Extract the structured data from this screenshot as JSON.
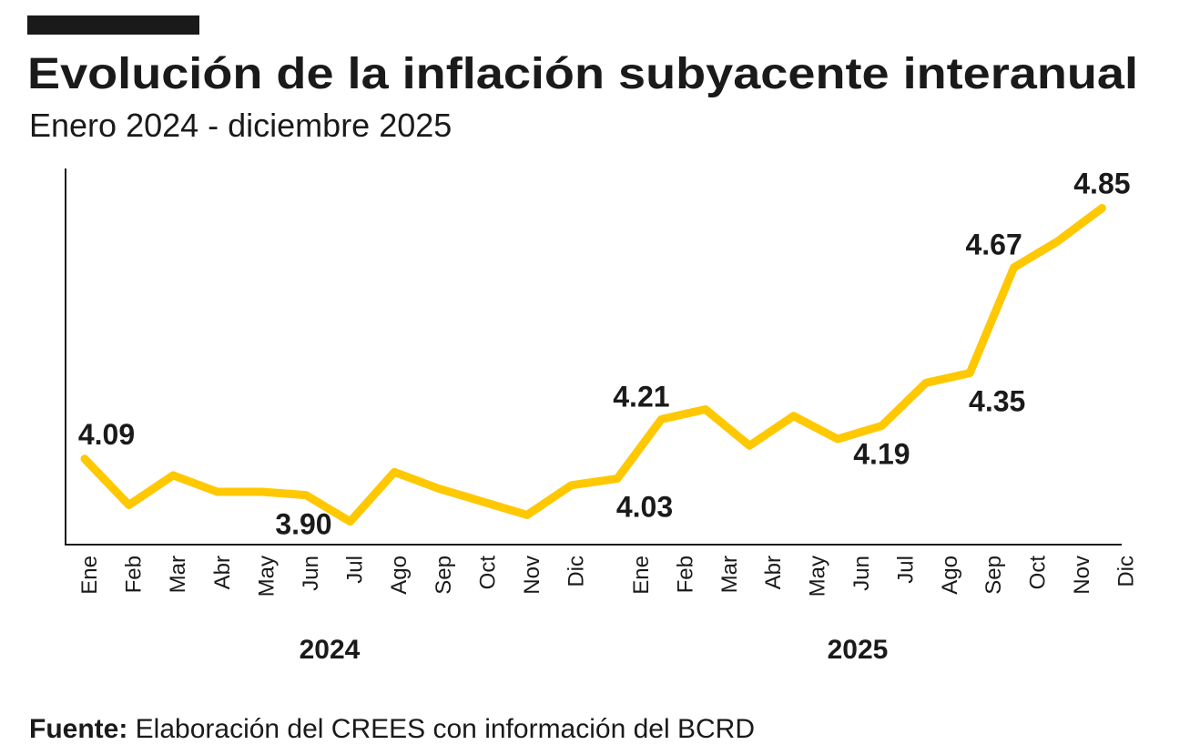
{
  "chart_data": {
    "type": "line",
    "title": "Evolución de la inflación subyacente interanual",
    "subtitle": "Enero 2024 - diciembre 2025",
    "xlabel": "",
    "ylabel": "",
    "groups": [
      {
        "year": "2024",
        "months": [
          "Ene",
          "Feb",
          "Mar",
          "Abr",
          "May",
          "Jun",
          "Jul",
          "Ago",
          "Sep",
          "Oct",
          "Nov",
          "Dic"
        ]
      },
      {
        "year": "2025",
        "months": [
          "Ene",
          "Feb",
          "Mar",
          "Abr",
          "May",
          "Jun",
          "Jul",
          "Ago",
          "Sep",
          "Oct",
          "Nov",
          "Dic"
        ]
      }
    ],
    "series": [
      {
        "values": [
          4.09,
          3.95,
          4.04,
          3.99,
          3.99,
          3.98,
          3.9,
          4.05,
          4.0,
          3.96,
          3.92,
          4.01,
          4.03,
          4.21,
          4.24,
          4.13,
          4.22,
          4.15,
          4.19,
          4.32,
          4.35,
          4.67,
          4.75,
          4.85
        ],
        "color": "#FFC800"
      }
    ],
    "data_labels": [
      {
        "index": 0,
        "text": "4.09",
        "pos": "above"
      },
      {
        "index": 6,
        "text": "3.90",
        "pos": "left"
      },
      {
        "index": 12,
        "text": "4.03",
        "pos": "below"
      },
      {
        "index": 13,
        "text": "4.21",
        "pos": "above-left"
      },
      {
        "index": 18,
        "text": "4.19",
        "pos": "below"
      },
      {
        "index": 20,
        "text": "4.35",
        "pos": "below"
      },
      {
        "index": 21,
        "text": "4.67",
        "pos": "above-left"
      },
      {
        "index": 23,
        "text": "4.85",
        "pos": "above"
      }
    ],
    "ylim": [
      3.83,
      4.97
    ],
    "grid": false,
    "legend": "none"
  },
  "source": {
    "label": "Fuente:",
    "text": " Elaboración del CREES con información del BCRD"
  }
}
